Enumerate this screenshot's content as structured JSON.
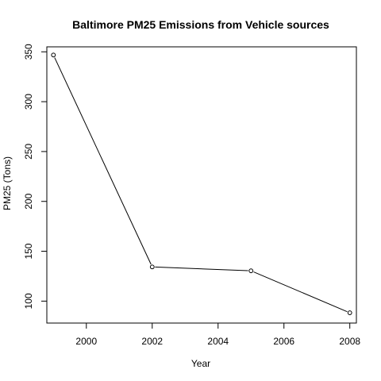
{
  "chart_data": {
    "type": "line",
    "title": "Baltimore PM25 Emissions from Vehicle sources",
    "xlabel": "Year",
    "ylabel": "PM25 (Tons)",
    "x": [
      1999,
      2002,
      2005,
      2008
    ],
    "series": [
      {
        "values": [
          346.8,
          134.3,
          130.4,
          88.3
        ],
        "marker": "open-circle",
        "color": "#000000"
      }
    ],
    "xticks": [
      "2000",
      "2002",
      "2004",
      "2006",
      "2008"
    ],
    "yticks": [
      "100",
      "150",
      "200",
      "250",
      "300",
      "350"
    ],
    "xlim": [
      1998.8,
      2008.2
    ],
    "ylim": [
      78,
      355
    ],
    "grid": false,
    "legend": "none"
  }
}
